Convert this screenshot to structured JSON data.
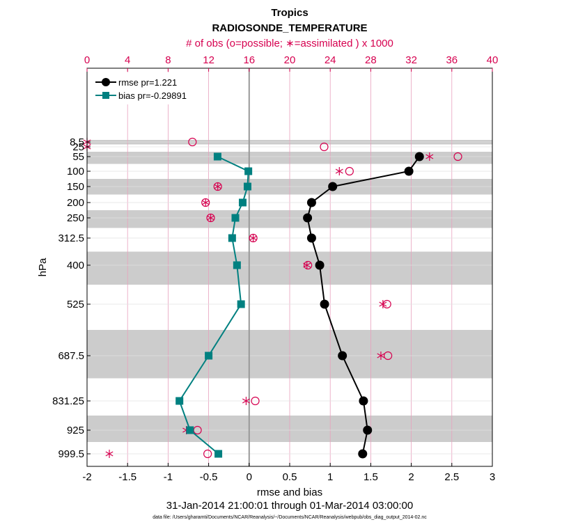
{
  "chart_data": {
    "type": "line",
    "title": "Tropics",
    "subtitle": "RADIOSONDE_TEMPERATURE",
    "top_axis_label": "# of obs (o=possible; ∗=assimilated ) x 1000",
    "xlabel": "rmse and bias",
    "ylabel": "hPa",
    "date_range": "31-Jan-2014 21:00:01 through 01-Mar-2014 03:00:00",
    "footer": "data file: /Users/gharamti/Documents/NCAR/Reanalysis/~/Documents/NCAR/Reanalysis/webpub/obs_diag_output_2014-02.nc",
    "xlim": [
      -2,
      3
    ],
    "x_ticks": [
      "-2",
      "-1.5",
      "-1",
      "-0.5",
      "0",
      "0.5",
      "1",
      "1.5",
      "2",
      "2.5",
      "3"
    ],
    "top_xlim": [
      0,
      40
    ],
    "top_ticks": [
      "0",
      "4",
      "8",
      "12",
      "16",
      "20",
      "24",
      "28",
      "32",
      "36",
      "40"
    ],
    "levels": [
      "8.5",
      "25",
      "55",
      "100",
      "150",
      "200",
      "250",
      "312.5",
      "400",
      "525",
      "687.5",
      "831.25",
      "925",
      "999.5"
    ],
    "level_values": [
      8.5,
      25,
      55,
      100,
      150,
      200,
      250,
      312.5,
      400,
      525,
      687.5,
      831.25,
      925,
      999.5
    ],
    "series": [
      {
        "name": "rmse pr=1.221",
        "color": "#000000",
        "marker": "circle",
        "levels": [
          55,
          100,
          150,
          200,
          250,
          312.5,
          400,
          525,
          687.5,
          831.25,
          925,
          999.5
        ],
        "values": [
          2.1,
          1.97,
          1.03,
          0.77,
          0.72,
          0.77,
          0.87,
          0.93,
          1.15,
          1.41,
          1.46,
          1.4
        ]
      },
      {
        "name": "bias pr=-0.29891",
        "color": "#008080",
        "marker": "square",
        "levels": [
          55,
          100,
          150,
          200,
          250,
          312.5,
          400,
          525,
          687.5,
          831.25,
          925,
          999.5
        ],
        "values": [
          -0.39,
          -0.01,
          -0.02,
          -0.08,
          -0.17,
          -0.21,
          -0.15,
          -0.1,
          -0.5,
          -0.86,
          -0.73,
          -0.38
        ]
      }
    ],
    "obs_possible": {
      "color": "#d6004f",
      "levels": [
        8.5,
        25,
        55,
        100,
        150,
        200,
        250,
        312.5,
        400,
        525,
        687.5,
        831.25,
        925,
        999.5
      ],
      "values": [
        10.4,
        23.4,
        36.6,
        25.9,
        12.9,
        11.7,
        12.2,
        16.4,
        21.8,
        29.6,
        29.7,
        16.6,
        10.9,
        11.9
      ]
    },
    "obs_assimilated": {
      "color": "#d6004f",
      "levels": [
        8.5,
        25,
        55,
        100,
        150,
        200,
        250,
        312.5,
        400,
        525,
        687.5,
        831.25,
        925,
        999.5
      ],
      "values": [
        0,
        0,
        33.8,
        24.9,
        12.9,
        11.7,
        12.2,
        16.4,
        21.7,
        29.2,
        29.0,
        15.7,
        9.8,
        2.2
      ]
    },
    "grid": true,
    "legend": "top-left"
  }
}
